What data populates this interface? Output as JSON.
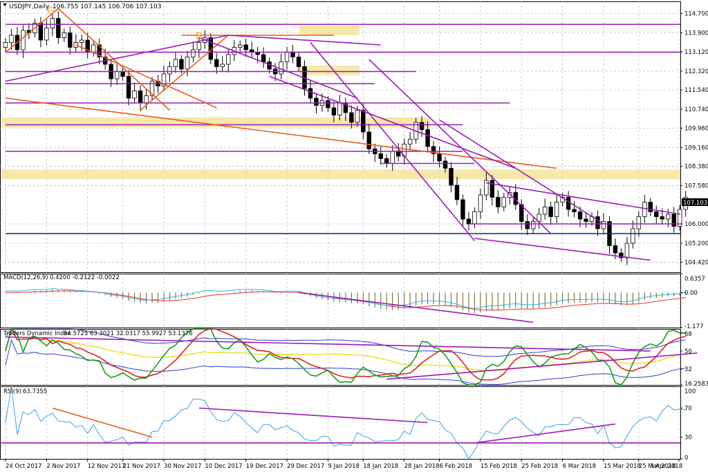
{
  "chart_data": [
    {
      "type": "candlestick",
      "title": "USDJPY,Daily",
      "ohlc_label": "106.755 107.145 106.706 107.103",
      "last_price": "107.103",
      "ylim": [
        104.0,
        115.2
      ],
      "yticks": [
        "114.700",
        "113.900",
        "113.120",
        "112.320",
        "111.540",
        "110.740",
        "109.960",
        "109.160",
        "108.380",
        "107.580",
        "106.000",
        "105.200",
        "104.420"
      ],
      "xticks": [
        "24 Oct 2017",
        "2 Nov 2017",
        "12 Nov 2017",
        "21 Nov 2017",
        "30 Nov 2017",
        "10 Dec 2017",
        "19 Dec 2017",
        "29 Dec 2017",
        "9 Jan 2018",
        "18 Jan 2018",
        "28 Jan 2018",
        "6 Feb 2018",
        "15 Feb 2018",
        "25 Feb 2018",
        "6 Mar 2018",
        "15 Mar 2018",
        "25 Mar 2018",
        "3 Apr 2018"
      ],
      "annotations": [
        "G",
        "B"
      ],
      "close": [
        113.5,
        113.8,
        113.2,
        114.0,
        113.9,
        114.3,
        113.6,
        114.1,
        114.5,
        113.7,
        113.9,
        113.3,
        113.5,
        113.6,
        113.1,
        113.4,
        112.9,
        112.6,
        112.0,
        112.3,
        112.1,
        111.2,
        111.5,
        111.0,
        111.3,
        111.9,
        111.7,
        112.2,
        112.5,
        112.8,
        112.4,
        112.9,
        113.2,
        113.5,
        113.7,
        112.8,
        112.5,
        112.6,
        113.0,
        113.3,
        113.4,
        113.2,
        113.1,
        113.0,
        112.7,
        112.4,
        112.2,
        112.7,
        113.1,
        112.9,
        112.5,
        111.6,
        111.2,
        110.9,
        111.1,
        110.8,
        110.5,
        111.0,
        110.6,
        110.2,
        110.7,
        109.8,
        109.1,
        108.9,
        108.7,
        108.5,
        109.0,
        108.8,
        109.3,
        109.5,
        110.2,
        109.9,
        109.2,
        108.9,
        108.6,
        108.3,
        107.6,
        107.0,
        106.2,
        106.0,
        106.5,
        107.2,
        107.8,
        107.1,
        106.7,
        107.1,
        107.3,
        106.8,
        106.1,
        105.8,
        106.1,
        106.4,
        106.7,
        106.3,
        106.9,
        107.1,
        106.6,
        106.5,
        106.2,
        106.1,
        106.3,
        105.8,
        106.1,
        105.1,
        104.8,
        104.6,
        105.2,
        105.8,
        106.3,
        106.9,
        106.5,
        106.3,
        106.2,
        106.4,
        105.9,
        106.6,
        107.1
      ],
      "indicators": [
        {
          "name": "MACD(12,26,9)",
          "values_label": "0.4200 -0.2122 -0.0022",
          "yticks": [
            "0.6357",
            "0.00",
            "-1.177"
          ],
          "ylim": [
            -1.177,
            0.6357
          ]
        },
        {
          "name": "Traders Dynamic Index",
          "values_label": "54.5725 63.3021 32.0317 55.9927 53.1376",
          "yticks": [
            "68",
            "50",
            "32",
            "16.2583"
          ],
          "ylim": [
            16.2583,
            72
          ]
        },
        {
          "name": "RSI(9)",
          "values_label": "63.7355",
          "yticks": [
            "100",
            "70",
            "30",
            "0"
          ],
          "ylim": [
            0,
            100
          ]
        }
      ]
    }
  ]
}
